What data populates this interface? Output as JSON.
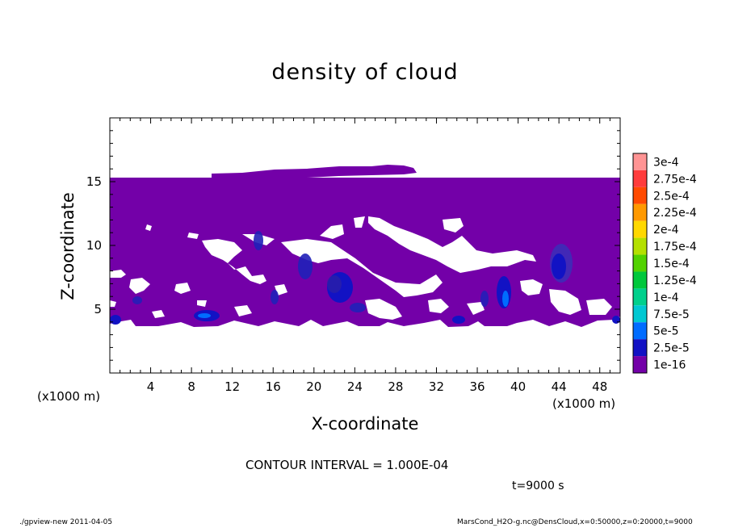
{
  "title": "density of cloud",
  "footer": {
    "left": "./gpview-new  2011-04-05",
    "right": "MarsCond_H2O-g.nc@DensCloud,x=0:50000,z=0:20000,t=9000"
  },
  "contour_interval": "CONTOUR INTERVAL = 1.000E-04",
  "time_label": "t=9000 s",
  "colors": {
    "background_field": "#7300a8",
    "no_data": "#ffffff"
  },
  "chart_data": {
    "type": "heatmap",
    "title": "density of cloud",
    "xlabel": "X-coordinate",
    "ylabel": "Z-coordinate",
    "x_unit": "(x1000 m)",
    "y_unit_label": "(x1000 m)",
    "xlim": [
      0,
      50
    ],
    "ylim": [
      0,
      20
    ],
    "x_ticks": [
      4,
      8,
      12,
      16,
      20,
      24,
      28,
      32,
      36,
      40,
      44,
      48
    ],
    "y_ticks": [
      5,
      10,
      15
    ],
    "colorbar": {
      "levels": [
        "3e-4",
        "2.75e-4",
        "2.5e-4",
        "2.25e-4",
        "2e-4",
        "1.75e-4",
        "1.5e-4",
        "1.25e-4",
        "1e-4",
        "7.5e-5",
        "5e-5",
        "2.5e-5",
        "1e-16"
      ],
      "colors": [
        "#ff9494",
        "#ff3c3c",
        "#ff4a00",
        "#ff9900",
        "#ffd800",
        "#b4e000",
        "#52d200",
        "#00c83c",
        "#00d08c",
        "#00c8d2",
        "#006cff",
        "#1212c4",
        "#7300a8"
      ]
    },
    "cloud_top_km": 15.3,
    "cloud_base_km": 4.0,
    "high_density_cores": [
      {
        "x": 10,
        "z": 4.4,
        "level": "5e-5"
      },
      {
        "x": 14.5,
        "z": 10.5,
        "level": "2.5e-5"
      },
      {
        "x": 19,
        "z": 8.5,
        "level": "2.5e-5"
      },
      {
        "x": 22,
        "z": 6.8,
        "level": "2.5e-5"
      },
      {
        "x": 38.5,
        "z": 6.3,
        "level": "5e-5"
      },
      {
        "x": 44,
        "z": 8.2,
        "level": "2.5e-5"
      },
      {
        "x": 1.5,
        "z": 5,
        "level": "2.5e-5"
      },
      {
        "x": 33,
        "z": 4.3,
        "level": "2.5e-5"
      }
    ]
  }
}
